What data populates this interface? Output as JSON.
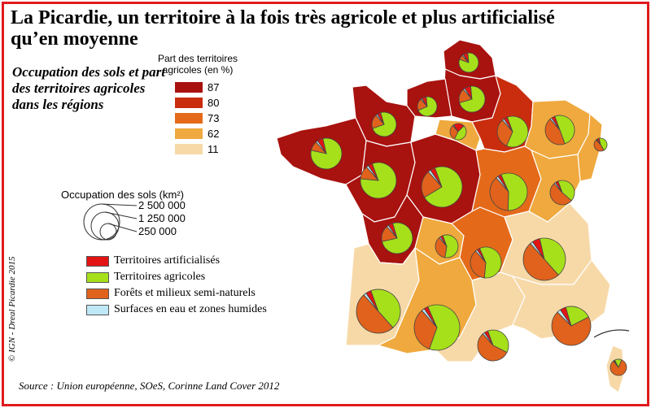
{
  "title": "La Picardie, un territoire à la fois très agricole et plus artificialisé qu’en moyenne",
  "subtitle": "Occupation des sols et part des territoires agricoles dans les régions",
  "legend_agri": {
    "title": "Part des territoires agricoles (en %)",
    "classes": [
      {
        "label": "87",
        "color": "#a8120f"
      },
      {
        "label": "80",
        "color": "#c92d0e"
      },
      {
        "label": "73",
        "color": "#e46a1a"
      },
      {
        "label": "62",
        "color": "#efa93e"
      },
      {
        "label": "11",
        "color": "#f7d9a8"
      }
    ]
  },
  "legend_size": {
    "title": "Occupation des sols (km²)",
    "values": [
      "2 500 000",
      "1 250 000",
      "250 000"
    ]
  },
  "categories": [
    {
      "label": "Territoires artificialisés",
      "color": "#e31414"
    },
    {
      "label": "Territoires agricoles",
      "color": "#a6e01a"
    },
    {
      "label": "Forêts et milieux semi-naturels",
      "color": "#e0621c"
    },
    {
      "label": "Surfaces en eau et zones humides",
      "color": "#bfe8f7"
    }
  ],
  "colors": {
    "border": "#e01b1b",
    "ocean": "#ffffff",
    "region_line": "#ffffff"
  },
  "credit": "© IGN - Dreal Picardie 2015",
  "source": "Source : Union européenne, SOeS, Corinne Land Cover 2012"
}
